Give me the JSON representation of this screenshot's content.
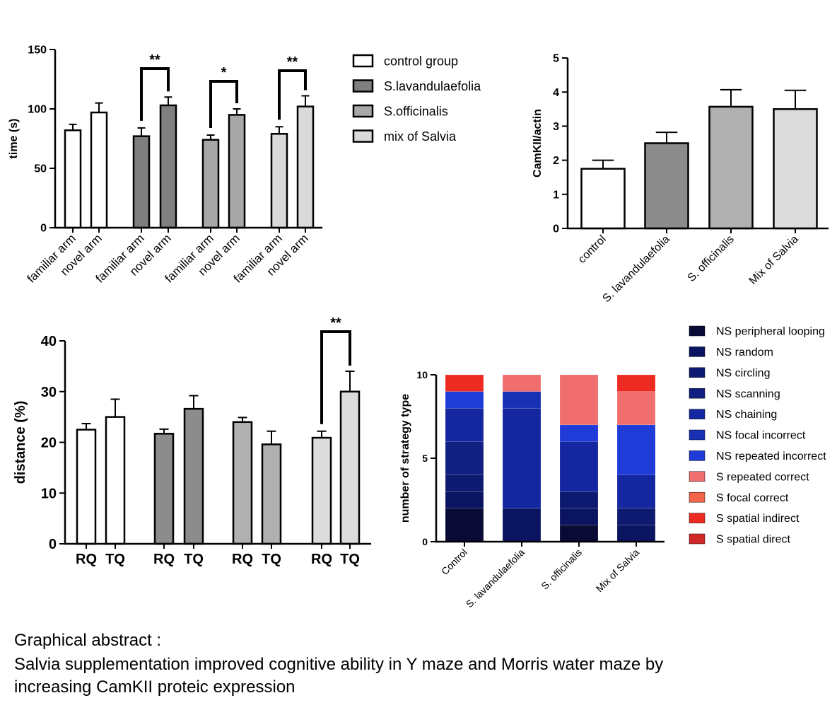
{
  "chart_data": [
    {
      "type": "bar",
      "ylabel": "time (s)",
      "categories": [
        "familiar arm",
        "novel arm",
        "familiar arm",
        "novel arm",
        "familiar arm",
        "novel arm",
        "familiar arm",
        "novel arm"
      ],
      "series": [
        {
          "name": "control group",
          "color": "#ffffff",
          "values": [
            82,
            97,
            null,
            null,
            null,
            null,
            null,
            null
          ],
          "errors": [
            5,
            8,
            null,
            null,
            null,
            null,
            null,
            null
          ]
        },
        {
          "name": "S.lavandulaefolia",
          "color": "#7f7f7f",
          "values": [
            null,
            null,
            77,
            103,
            null,
            null,
            null,
            null
          ],
          "errors": [
            null,
            null,
            7,
            7,
            null,
            null,
            null,
            null
          ]
        },
        {
          "name": "S.officinalis",
          "color": "#a8a8a8",
          "values": [
            null,
            null,
            null,
            null,
            74,
            95,
            null,
            null
          ],
          "errors": [
            null,
            null,
            null,
            null,
            4,
            5,
            null,
            null
          ]
        },
        {
          "name": "mix of Salvia",
          "color": "#dadada",
          "values": [
            null,
            null,
            null,
            null,
            null,
            null,
            79,
            102
          ],
          "errors": [
            null,
            null,
            null,
            null,
            null,
            null,
            6,
            9
          ]
        }
      ],
      "ylim": [
        0,
        150
      ],
      "yticks": [
        0,
        50,
        100,
        150
      ],
      "annotations": [
        "**",
        "*",
        "**"
      ]
    },
    {
      "type": "bar",
      "ylabel": "CamKII/actin",
      "categories": [
        "control",
        "S. lavandulaefolia",
        "S. officinalis",
        "Mix of Salvia"
      ],
      "values": [
        1.75,
        2.5,
        3.57,
        3.5
      ],
      "errors": [
        0.25,
        0.32,
        0.5,
        0.55
      ],
      "colors": [
        "#ffffff",
        "#8c8c8c",
        "#b0b0b0",
        "#dcdcdc"
      ],
      "ylim": [
        0,
        5
      ],
      "yticks": [
        0,
        1,
        2,
        3,
        4,
        5
      ]
    },
    {
      "type": "bar",
      "ylabel": "distance (%)",
      "categories": [
        "RQ",
        "TQ",
        "RQ",
        "TQ",
        "RQ",
        "TQ",
        "RQ",
        "TQ"
      ],
      "values": [
        22.5,
        25,
        21.7,
        26.6,
        24,
        19.6,
        20.9,
        30
      ],
      "errors": [
        1.2,
        3.5,
        0.9,
        2.6,
        0.9,
        2.6,
        1.3,
        4
      ],
      "colors": [
        "#ffffff",
        "#ffffff",
        "#8c8c8c",
        "#8c8c8c",
        "#b0b0b0",
        "#b0b0b0",
        "#dcdcdc",
        "#dcdcdc"
      ],
      "ylim": [
        0,
        40
      ],
      "yticks": [
        0,
        10,
        20,
        30,
        40
      ],
      "annotations": [
        "**"
      ]
    },
    {
      "type": "stacked_bar",
      "ylabel": "number of strategy type",
      "categories": [
        "Control",
        "S. lavandulaefolia",
        "S. officinalis",
        "Mix of Salvia"
      ],
      "series": [
        {
          "name": "NS peripheral looping",
          "color": "#0a0a36",
          "values": [
            2,
            0,
            1,
            0
          ]
        },
        {
          "name": "NS random",
          "color": "#0b1460",
          "values": [
            1,
            2,
            1,
            1
          ]
        },
        {
          "name": "NS circling",
          "color": "#0d1a70",
          "values": [
            1,
            0,
            1,
            1
          ]
        },
        {
          "name": "NS scanning",
          "color": "#111f82",
          "values": [
            2,
            0,
            0,
            0
          ]
        },
        {
          "name": "NS chaining",
          "color": "#1527a0",
          "values": [
            2,
            6,
            3,
            2
          ]
        },
        {
          "name": "NS focal incorrect",
          "color": "#1830b4",
          "values": [
            0,
            1,
            0,
            0
          ]
        },
        {
          "name": "NS repeated incorrect",
          "color": "#1f3bd8",
          "values": [
            1,
            0,
            1,
            3
          ]
        },
        {
          "name": "S repeated correct",
          "color": "#f06e6e",
          "values": [
            0,
            1,
            3,
            2
          ]
        },
        {
          "name": "S focal correct",
          "color": "#f6654a",
          "values": [
            0,
            0,
            0,
            0
          ]
        },
        {
          "name": "S spatial indirect",
          "color": "#ee2b22",
          "values": [
            1,
            0,
            0,
            1
          ]
        },
        {
          "name": "S spatial direct",
          "color": "#d02828",
          "values": [
            0,
            0,
            0,
            0
          ]
        }
      ],
      "ylim": [
        0,
        10
      ],
      "yticks": [
        0,
        5,
        10
      ]
    }
  ],
  "caption_title": "Graphical abstract :",
  "caption_text": [
    "Salvia supplementation improved cognitive ability in Y maze and Morris water maze by",
    "increasing CamKII proteic expression"
  ]
}
